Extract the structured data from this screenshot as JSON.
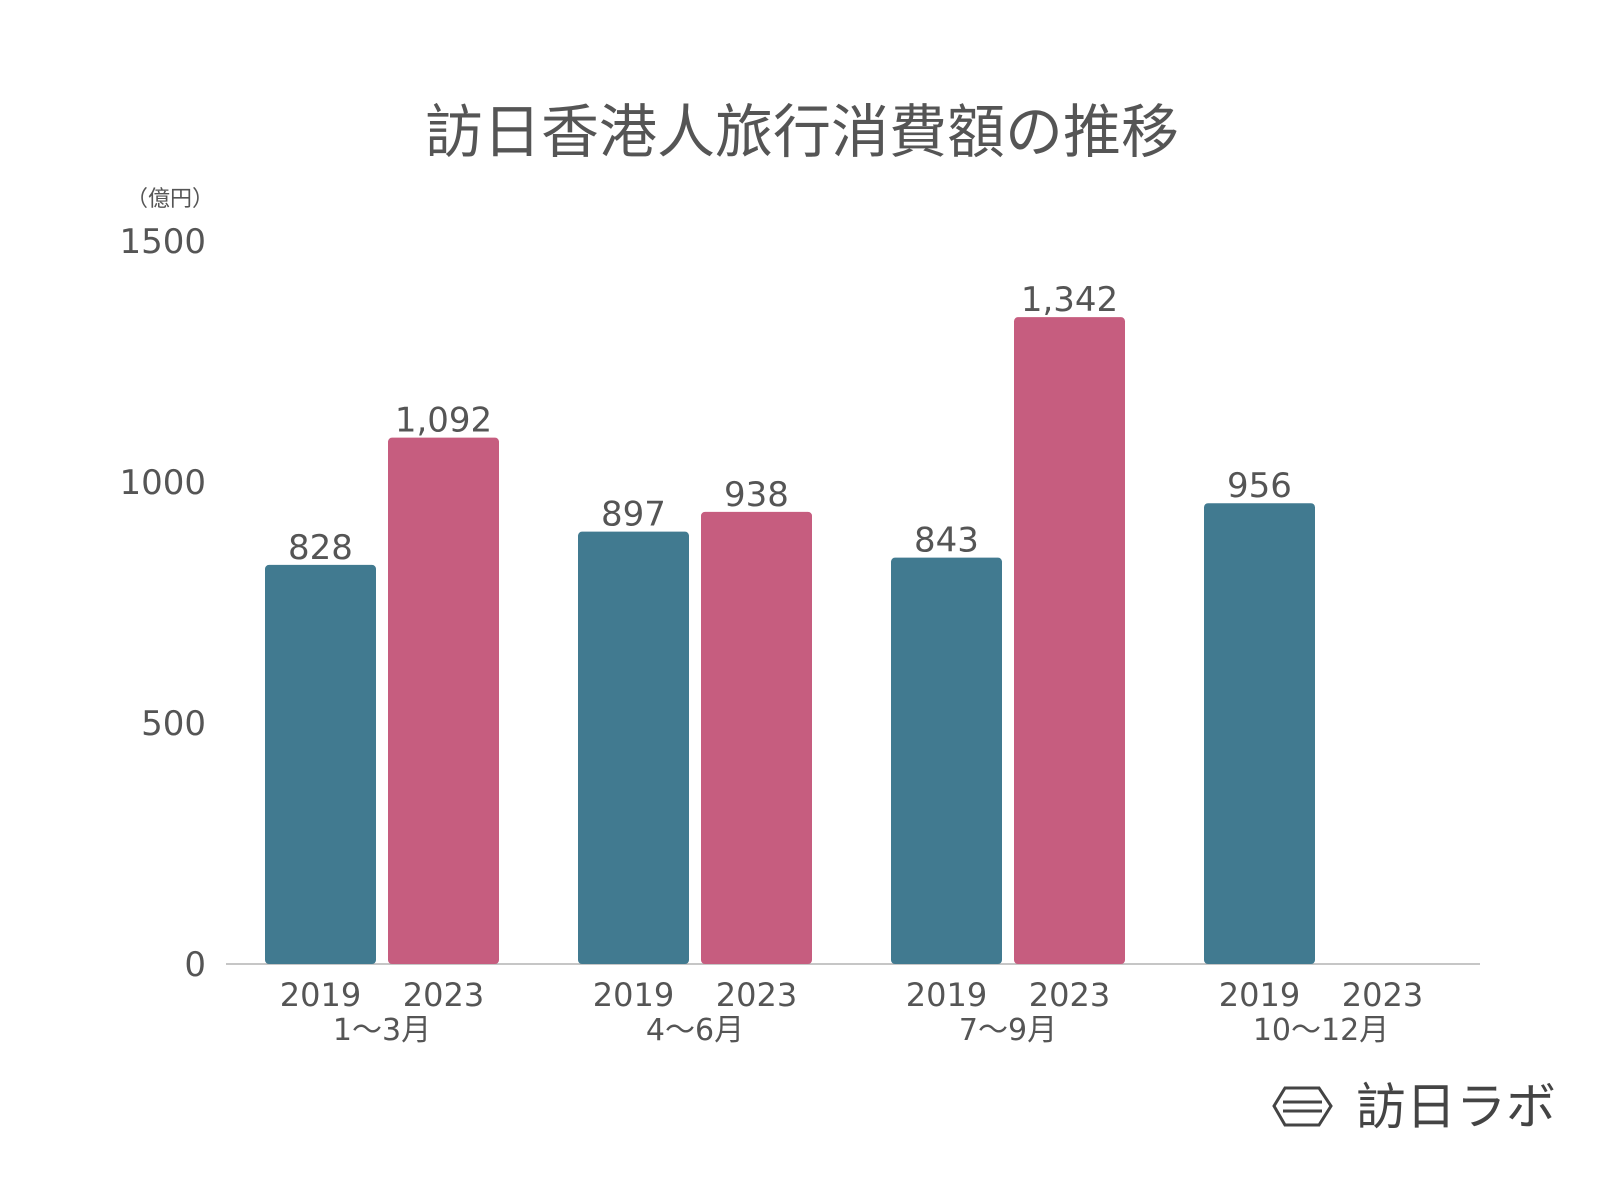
{
  "chart_data": {
    "type": "bar",
    "title": "訪日香港人旅行消費額の推移",
    "unit_label": "（億円）",
    "ylim": [
      0,
      1500
    ],
    "yticks": [
      0,
      500,
      1000,
      1500
    ],
    "grid": false,
    "categories": [
      "1〜3月",
      "4〜6月",
      "7〜9月",
      "10〜12月"
    ],
    "series": [
      {
        "name": "2019",
        "color": "#417A90",
        "values": [
          828,
          897,
          843,
          956
        ],
        "labels": [
          "828",
          "897",
          "843",
          "956"
        ]
      },
      {
        "name": "2023",
        "color": "#C65D7F",
        "values": [
          1092,
          938,
          1342,
          null
        ],
        "labels": [
          "1,092",
          "938",
          "1,342",
          ""
        ]
      }
    ]
  },
  "logo": {
    "text": "訪日ラボ",
    "icon": "hexagon-logo-icon"
  }
}
